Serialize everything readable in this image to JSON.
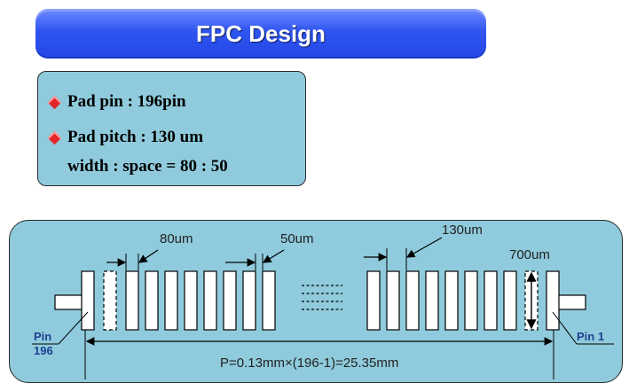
{
  "header": {
    "title": "FPC Design"
  },
  "specs": {
    "items": [
      {
        "text": "Pad pin : 196pin",
        "bullet": true
      },
      {
        "text": "Pad pitch : 130 um",
        "bullet": true
      },
      {
        "text": "width : space = 80 : 50",
        "bullet": false
      }
    ],
    "bullet_color": "#e3262b"
  },
  "diagram": {
    "dim_pad_width": "80um",
    "dim_space": "50um",
    "dim_pitch": "130um",
    "dim_pad_length": "700um",
    "formula": "P=0.13mm×(196-1)=25.35mm",
    "pin_left_label_top": "Pin",
    "pin_left_label_bottom": "196",
    "pin_right_label": "Pin 1",
    "pin_label_color": "#1f3f8f",
    "panel_color": "#8fcbdc"
  }
}
